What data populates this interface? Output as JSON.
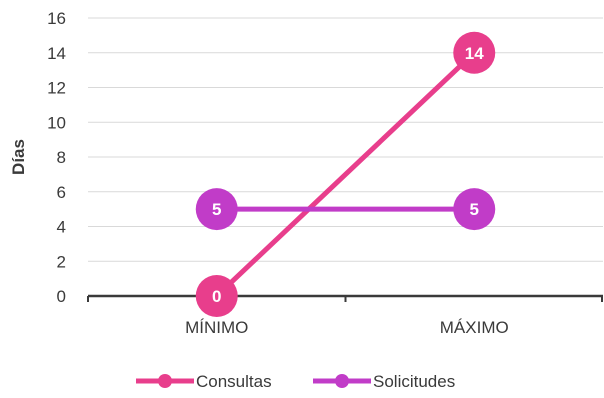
{
  "chart_data": {
    "type": "line",
    "categories": [
      "MÍNIMO",
      "MÁXIMO"
    ],
    "ylabel": "Días",
    "ylim": [
      0,
      16
    ],
    "yticks": [
      0,
      2,
      4,
      6,
      8,
      10,
      12,
      14,
      16
    ],
    "grid": true,
    "legend_position": "bottom",
    "series": [
      {
        "name": "Consultas",
        "values": [
          0,
          14
        ],
        "color": "#E83E8C",
        "data_labels": [
          "0",
          "14"
        ]
      },
      {
        "name": "Solicitudes",
        "values": [
          5,
          5
        ],
        "color": "#C13CC8",
        "data_labels": [
          "5",
          "5"
        ]
      }
    ]
  }
}
